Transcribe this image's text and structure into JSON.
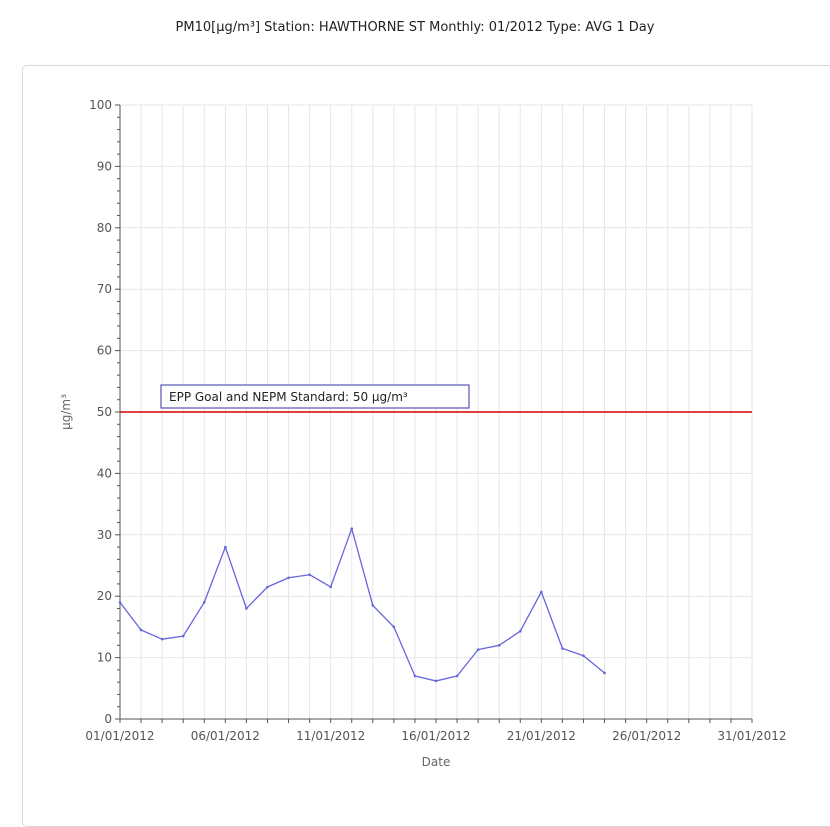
{
  "chart_data": {
    "type": "line",
    "title": "PM10[µg/m³] Station: HAWTHORNE ST  Monthly: 01/2012  Type: AVG 1 Day",
    "xlabel": "Date",
    "ylabel": "µg/m³",
    "ylim": [
      0,
      100
    ],
    "xlim": [
      "01/01/2012",
      "31/01/2012"
    ],
    "y_ticks": [
      0,
      10,
      20,
      30,
      40,
      50,
      60,
      70,
      80,
      90,
      100
    ],
    "x_tick_labels": [
      "01/01/2012",
      "06/01/2012",
      "11/01/2012",
      "16/01/2012",
      "21/01/2012",
      "26/01/2012",
      "31/01/2012"
    ],
    "grid": true,
    "reference_line": {
      "value": 50,
      "label": "EPP Goal and NEPM Standard: 50 µg/m³",
      "color": "#d40000"
    },
    "series": [
      {
        "color": "#6666dd",
        "x": [
          "01/01/2012",
          "02/01/2012",
          "03/01/2012",
          "04/01/2012",
          "05/01/2012",
          "06/01/2012",
          "07/01/2012",
          "08/01/2012",
          "09/01/2012",
          "10/01/2012",
          "11/01/2012",
          "12/01/2012",
          "13/01/2012",
          "14/01/2012",
          "15/01/2012",
          "16/01/2012",
          "17/01/2012",
          "18/01/2012",
          "19/01/2012",
          "20/01/2012",
          "21/01/2012",
          "22/01/2012",
          "23/01/2012",
          "24/01/2012",
          "25/01/2012"
        ],
        "values": [
          19,
          14.5,
          13,
          13.5,
          19,
          28,
          18,
          21.5,
          23,
          23.5,
          21.5,
          31,
          18.5,
          15,
          7,
          6.2,
          7,
          11.3,
          12,
          14.3,
          20.7,
          11.5,
          10.3,
          7.5,
          null
        ]
      }
    ]
  }
}
